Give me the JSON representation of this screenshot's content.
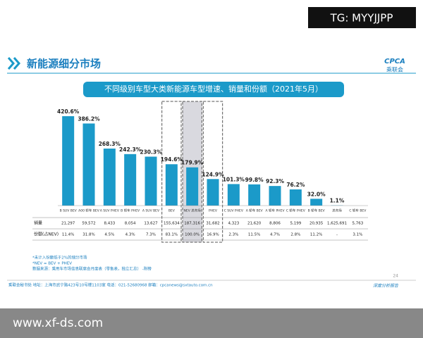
{
  "watermark": "TG: MYYJJPP",
  "header": {
    "title": "新能源细分市场",
    "logo": "CPCA",
    "logo_sub": "乘联会"
  },
  "chart_data": {
    "type": "bar",
    "title": "不同级别车型大类新能源车型增速、销量和份额（2021年5月）",
    "categories": [
      "B SUV BEV",
      "A00 轿车 BEV",
      "A SUV PHEV",
      "B 轿车 PHEV",
      "A SUV BEV",
      "BEV",
      "NEV 总市场",
      "PHEV",
      "C SUV PHEV",
      "A 轿车 BEV",
      "A 轿车 PHEV",
      "C 轿车 PHEV",
      "B 轿车 BEV",
      "总市场",
      "C 轿车 BEV"
    ],
    "values": [
      420.6,
      386.2,
      268.3,
      242.3,
      230.3,
      194.6,
      179.9,
      124.9,
      101.3,
      99.8,
      92.3,
      76.2,
      32.0,
      1.1,
      null
    ],
    "value_labels": [
      "420.6%",
      "386.2%",
      "268.3%",
      "242.3%",
      "230.3%",
      "194.6%",
      "179.9%",
      "124.9%",
      "101.3%",
      "99.8%",
      "92.3%",
      "76.2%",
      "32.0%",
      "1.1%",
      null
    ],
    "color": "#1b9ac9"
  },
  "table": {
    "rows": [
      {
        "label": "销量",
        "cells": [
          "21,297",
          "59,572",
          "8,433",
          "8,054",
          "13,627",
          "155,634",
          "187,316",
          "31,682",
          "4,323",
          "21,620",
          "8,806",
          "5,199",
          "20,935",
          "1,625,691",
          "5,763"
        ]
      },
      {
        "label": "份额(占NEV)",
        "cells": [
          "11.4%",
          "31.8%",
          "4.5%",
          "4.3%",
          "7.3%",
          "83.1%",
          "100.0%",
          "16.9%",
          "2.3%",
          "11.5%",
          "4.7%",
          "2.8%",
          "11.2%",
          "-",
          "3.1%"
        ]
      }
    ]
  },
  "notes": [
    "*未计入份额低于2%的细分市场",
    "*NEV = BEV + PHEV",
    "数据来源：乘用车市场信息联席会月度表（零售表，独立汇总） -附榜"
  ],
  "page_number": "24",
  "footer": "乘联会秘书处   地址：上海市武宁路423号10号楼1103室   电话：021-52680968   邮箱：cpcanews@sxtauto.com.cn",
  "report_tag": "深度分析报告",
  "site": "www.xf-ds.com"
}
